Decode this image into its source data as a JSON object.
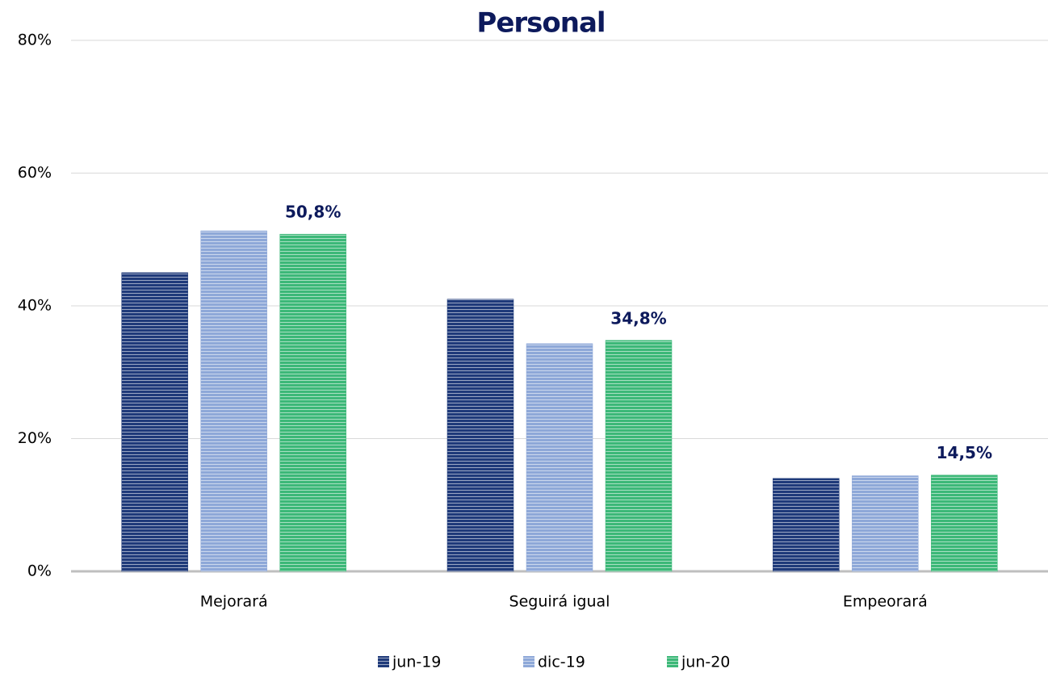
{
  "chart_data": {
    "type": "bar",
    "title": "Personal",
    "categories": [
      "Mejorará",
      "Seguirá igual",
      "Empeorará"
    ],
    "series": [
      {
        "name": "jun-19",
        "color": "#1f3a7a",
        "values": [
          45.0,
          41.0,
          14.0
        ]
      },
      {
        "name": "dic-19",
        "color": "#8ea8d8",
        "values": [
          51.3,
          34.3,
          14.4
        ]
      },
      {
        "name": "jun-20",
        "color": "#3cb878",
        "values": [
          50.8,
          34.8,
          14.5
        ],
        "value_labels": [
          "50,8%",
          "34,8%",
          "14,5%"
        ]
      }
    ],
    "ylim": [
      0,
      80
    ],
    "yticks": [
      {
        "value": 0,
        "label": "0%"
      },
      {
        "value": 20,
        "label": "20%"
      },
      {
        "value": 40,
        "label": "40%"
      },
      {
        "value": 60,
        "label": "60%"
      },
      {
        "value": 80,
        "label": "80%"
      }
    ],
    "grid": true,
    "legend": "bottom"
  }
}
